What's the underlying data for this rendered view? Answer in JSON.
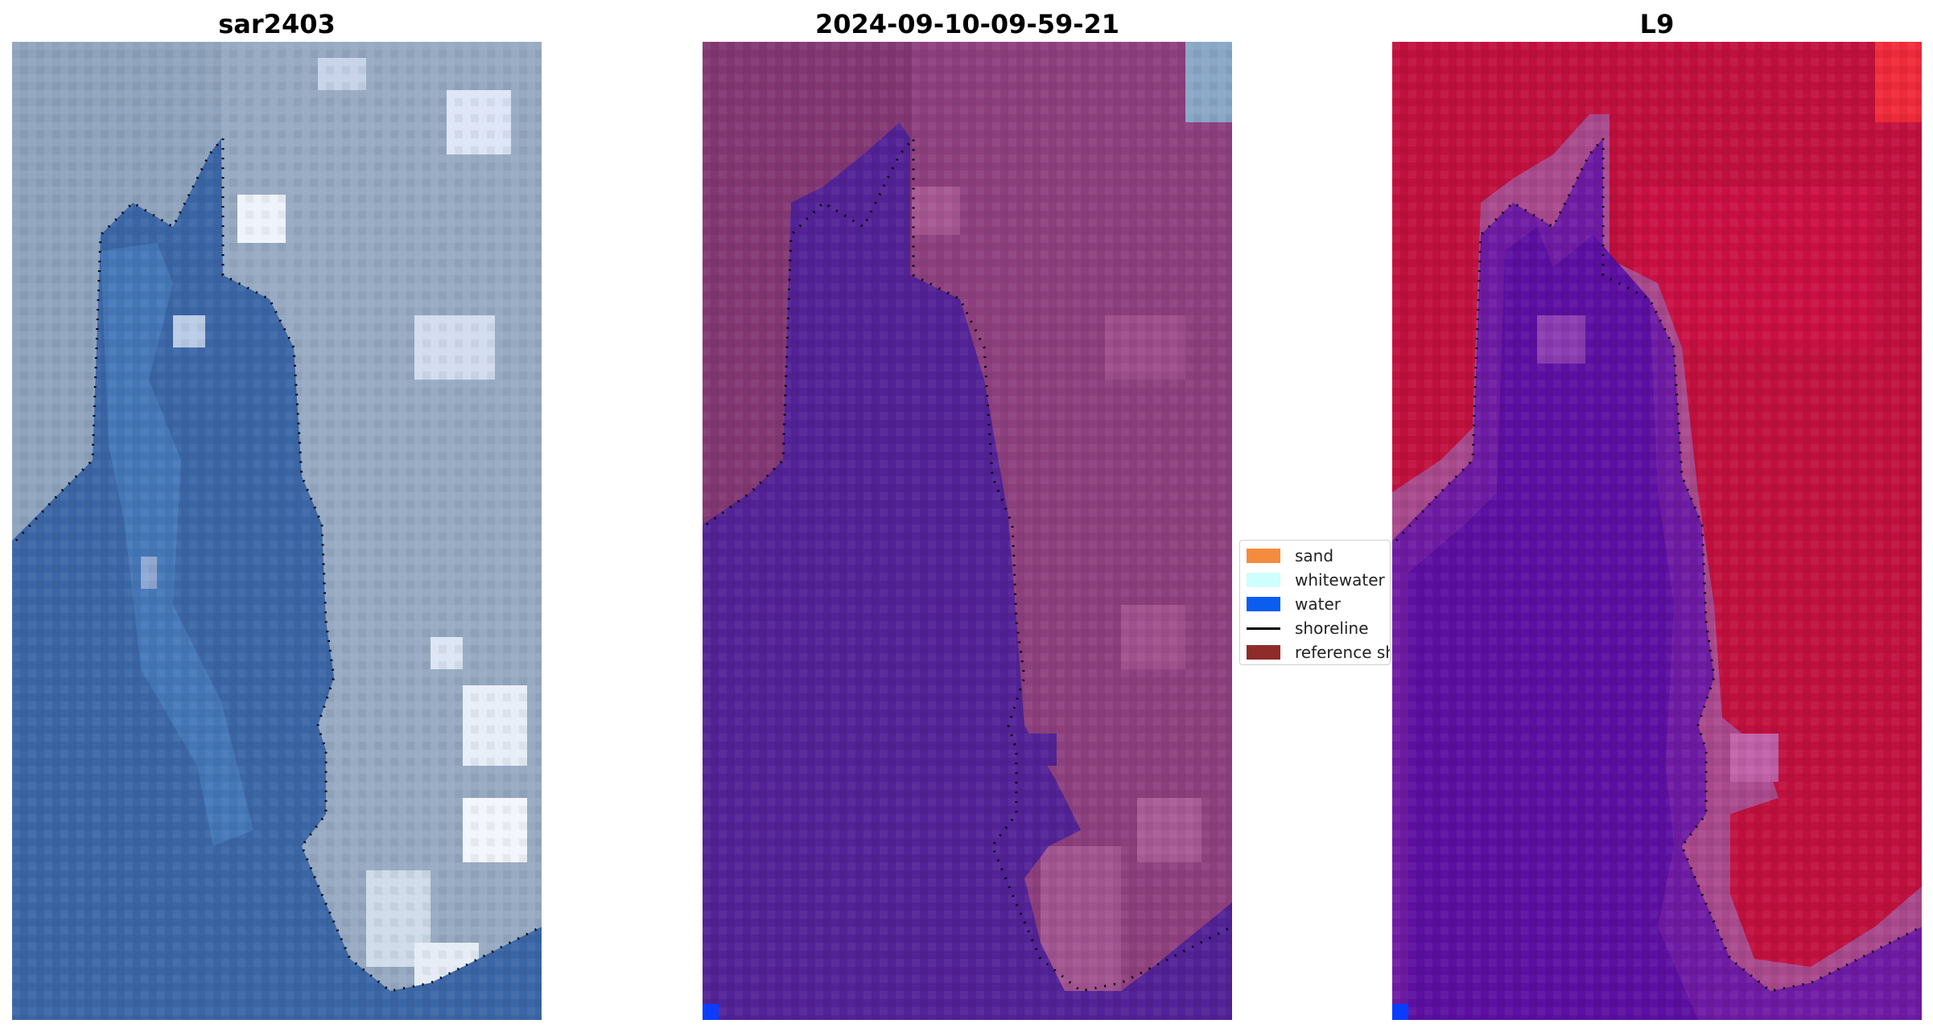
{
  "panels": [
    {
      "id": "sar",
      "title": "sar2403"
    },
    {
      "id": "classified",
      "title": "2024-09-10-09-59-21"
    },
    {
      "id": "mndwi",
      "title": "L9"
    }
  ],
  "legend": {
    "items": [
      {
        "label": "sand",
        "color": "#f58b3d",
        "kind": "patch"
      },
      {
        "label": "whitewater",
        "color": "#cffefe",
        "kind": "patch"
      },
      {
        "label": "water",
        "color": "#0b5cf0",
        "kind": "patch"
      },
      {
        "label": "shoreline",
        "color": "#000000",
        "kind": "line"
      },
      {
        "label": "reference shoreline",
        "color": "#8f2b2b",
        "kind": "patch"
      }
    ]
  },
  "colors": {
    "sar_water": "#3b66a6",
    "sar_land": "#8fa3bd",
    "class_water": "#522296",
    "class_land": "#823772",
    "index_water": "#5c0fa0",
    "index_land": "#c0103e"
  }
}
